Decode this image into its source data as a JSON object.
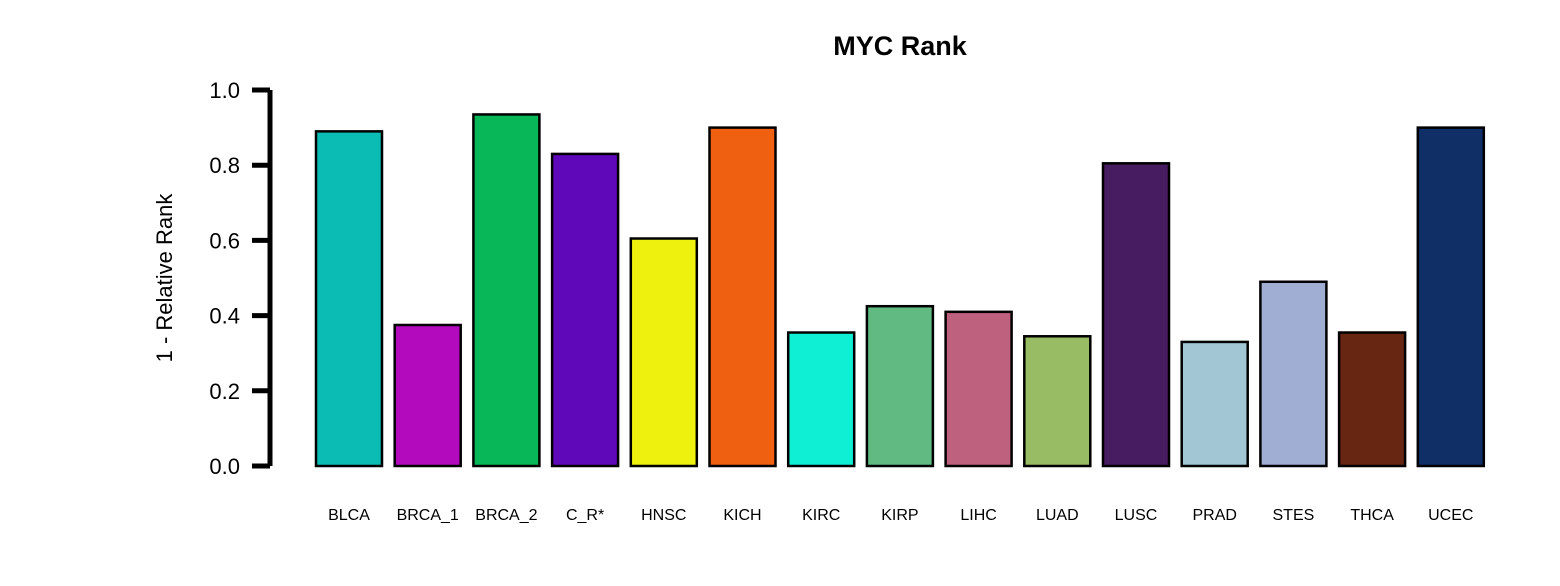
{
  "chart_data": {
    "type": "bar",
    "title": "MYC Rank",
    "xlabel": "",
    "ylabel": "1 - Relative Rank",
    "ylim": [
      0,
      1.0
    ],
    "yticks": [
      "0.0",
      "0.2",
      "0.4",
      "0.6",
      "0.8",
      "1.0"
    ],
    "categories": [
      "BLCA",
      "BRCA_1",
      "BRCA_2",
      "C_R*",
      "HNSC",
      "KICH",
      "KIRC",
      "KIRP",
      "LIHC",
      "LUAD",
      "LUSC",
      "PRAD",
      "STES",
      "THCA",
      "UCEC"
    ],
    "values": [
      0.89,
      0.375,
      0.935,
      0.83,
      0.605,
      0.9,
      0.355,
      0.425,
      0.41,
      0.345,
      0.805,
      0.33,
      0.49,
      0.355,
      0.9
    ],
    "colors": [
      "#0BBCB4",
      "#B30ABD",
      "#08B858",
      "#5F08BA",
      "#EEF00D",
      "#F06011",
      "#0FEFD4",
      "#61BA82",
      "#BD617F",
      "#97BC63",
      "#471C60",
      "#A3C6D4",
      "#A0AED4",
      "#662611",
      "#0F2F66"
    ],
    "grid": false,
    "legend": "none"
  }
}
